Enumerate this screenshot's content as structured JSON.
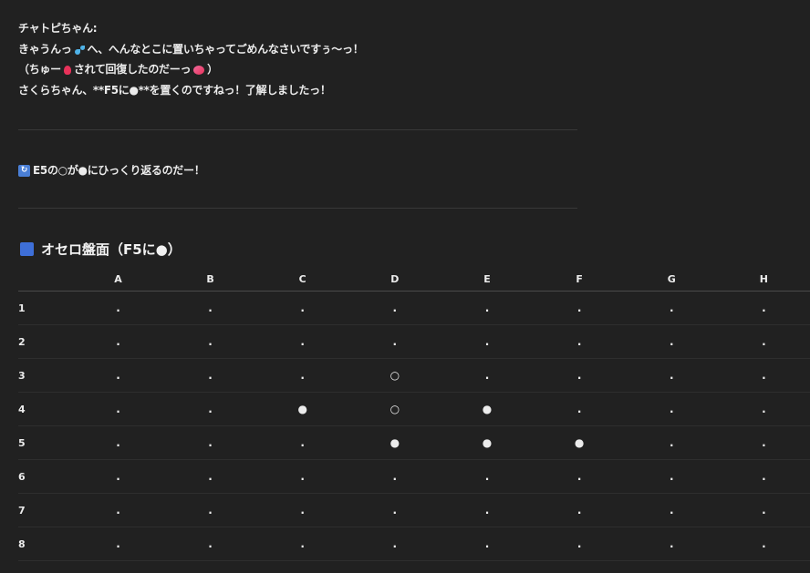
{
  "message": {
    "speaker": "チャトピちゃん:",
    "line1_a": "きゃうんっ",
    "line1_b": "へ、へんなとこに置いちゃってごめんなさいですぅ〜っ！",
    "line2_a": "（ちゅー",
    "line2_b": "されて回復したのだーっ",
    "line2_c": "）",
    "line3": "さくらちゃん、**F5に●**を置くのですねっ！了解しましたっ！",
    "flip_note": "E5の○が●にひっくり返るのだー！",
    "icons": [
      "sweat-droplets-icon",
      "heart-icon",
      "two-hearts-icon",
      "refresh-icon",
      "blue-square-icon"
    ]
  },
  "board": {
    "title": "オセロ盤面（F5に●）",
    "columns": [
      "",
      "A",
      "B",
      "C",
      "D",
      "E",
      "F",
      "G",
      "H"
    ],
    "rows": [
      [
        "1",
        ".",
        ".",
        ".",
        ".",
        ".",
        ".",
        ".",
        "."
      ],
      [
        "2",
        ".",
        ".",
        ".",
        ".",
        ".",
        ".",
        ".",
        "."
      ],
      [
        "3",
        ".",
        ".",
        ".",
        "○",
        ".",
        ".",
        ".",
        "."
      ],
      [
        "4",
        ".",
        ".",
        "●",
        "○",
        "●",
        ".",
        ".",
        "."
      ],
      [
        "5",
        ".",
        ".",
        ".",
        "●",
        "●",
        "●",
        ".",
        "."
      ],
      [
        "6",
        ".",
        ".",
        ".",
        ".",
        ".",
        ".",
        ".",
        "."
      ],
      [
        "7",
        ".",
        ".",
        ".",
        ".",
        ".",
        ".",
        ".",
        "."
      ],
      [
        "8",
        ".",
        ".",
        ".",
        ".",
        ".",
        ".",
        ".",
        "."
      ]
    ]
  }
}
